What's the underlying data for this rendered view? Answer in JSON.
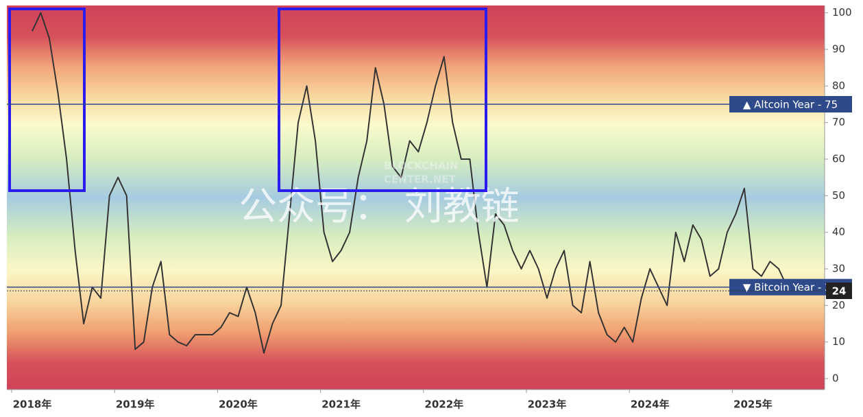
{
  "chart_data": {
    "type": "line",
    "categories": [
      "2018年",
      null,
      null,
      null,
      null,
      null,
      null,
      null,
      null,
      null,
      null,
      null,
      "2019年",
      null,
      null,
      null,
      null,
      null,
      null,
      null,
      null,
      null,
      null,
      null,
      "2020年",
      null,
      null,
      null,
      null,
      null,
      null,
      null,
      null,
      null,
      null,
      null,
      "2021年",
      null,
      null,
      null,
      null,
      null,
      null,
      null,
      null,
      null,
      null,
      null,
      "2022年",
      null,
      null,
      null,
      null,
      null,
      null,
      null,
      null,
      null,
      null,
      null,
      "2023年",
      null,
      null,
      null,
      null,
      null,
      null,
      null,
      null,
      null,
      null,
      null,
      "2024年",
      null,
      null,
      null,
      null,
      null,
      null,
      null,
      null,
      null,
      null,
      null,
      "2025年",
      null,
      null,
      null,
      null,
      null
    ],
    "series": [
      {
        "color": "#333333",
        "values": [
          95,
          100,
          93,
          78,
          60,
          35,
          15,
          25,
          22,
          50,
          55,
          50,
          8,
          10,
          25,
          32,
          12,
          10,
          9,
          12,
          12,
          12,
          14,
          18,
          17,
          25,
          18,
          7,
          15,
          20,
          45,
          70,
          80,
          65,
          40,
          32,
          35,
          40,
          55,
          65,
          85,
          75,
          58,
          55,
          65,
          62,
          70,
          80,
          88,
          70,
          60,
          60,
          40,
          25,
          45,
          42,
          35,
          30,
          35,
          30,
          22,
          30,
          35,
          20,
          18,
          32,
          18,
          12,
          10,
          14,
          10,
          22,
          30,
          25,
          20,
          40,
          32,
          42,
          38,
          28,
          30,
          40,
          45,
          52,
          30,
          28,
          32,
          30,
          25,
          24
        ]
      }
    ],
    "ylim": [
      -3,
      102
    ],
    "yticks": [
      0,
      10,
      20,
      30,
      40,
      50,
      60,
      70,
      80,
      90,
      100
    ],
    "reference_lines": [
      {
        "value": 75,
        "label": "▲ Altcoin Year - 75",
        "color": "#2f4a8a"
      },
      {
        "value": 25,
        "label": "▼ Bitcoin Year - 25",
        "color": "#2f4a8a"
      }
    ],
    "current_value": 24,
    "watermark": "公众号： 刘教链",
    "source_lines": [
      "BLOCKCHAIN",
      "CENTER.NET"
    ]
  }
}
